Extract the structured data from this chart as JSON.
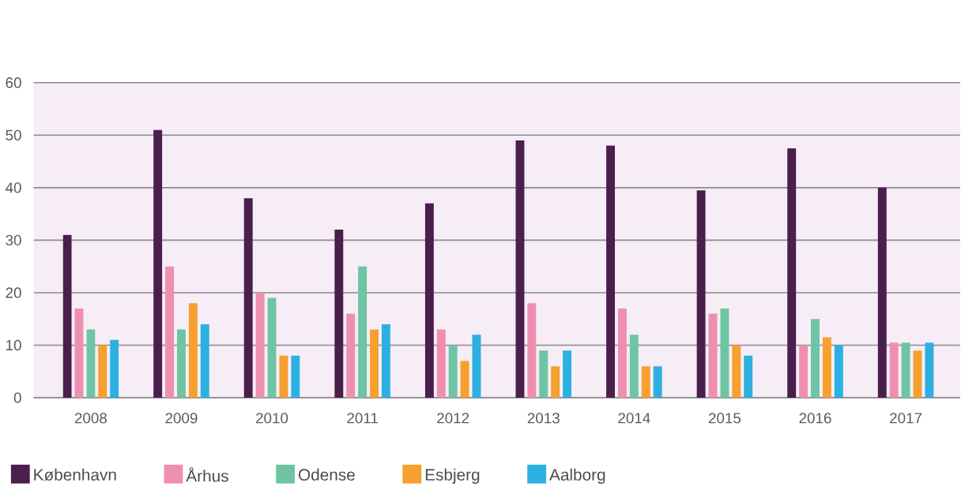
{
  "chart_data": {
    "type": "bar",
    "categories": [
      "2008",
      "2009",
      "2010",
      "2011",
      "2012",
      "2013",
      "2014",
      "2015",
      "2016",
      "2017"
    ],
    "series": [
      {
        "name": "København",
        "color": "#4a1f4c",
        "values": [
          31,
          51,
          38,
          32,
          37,
          49,
          48,
          39.5,
          47.5,
          40
        ]
      },
      {
        "name": "Århus",
        "color": "#ef8fb0",
        "values": [
          17,
          25,
          20,
          16,
          13,
          18,
          17,
          16,
          10,
          10.5
        ]
      },
      {
        "name": "Odense",
        "color": "#6fc4a3",
        "values": [
          13,
          13,
          19,
          25,
          10,
          9,
          12,
          17,
          15,
          10.5
        ]
      },
      {
        "name": "Esbjerg",
        "color": "#f5a02f",
        "values": [
          10,
          18,
          8,
          13,
          7,
          6,
          6,
          10,
          11.5,
          9
        ]
      },
      {
        "name": "Aalborg",
        "color": "#2cb0e2",
        "values": [
          11,
          14,
          8,
          14,
          12,
          9,
          6,
          8,
          10,
          10.5
        ]
      }
    ],
    "ylim": [
      0,
      60
    ],
    "yticks": [
      0,
      10,
      20,
      30,
      40,
      50,
      60
    ],
    "grid": "y",
    "legend": "bottom left"
  }
}
